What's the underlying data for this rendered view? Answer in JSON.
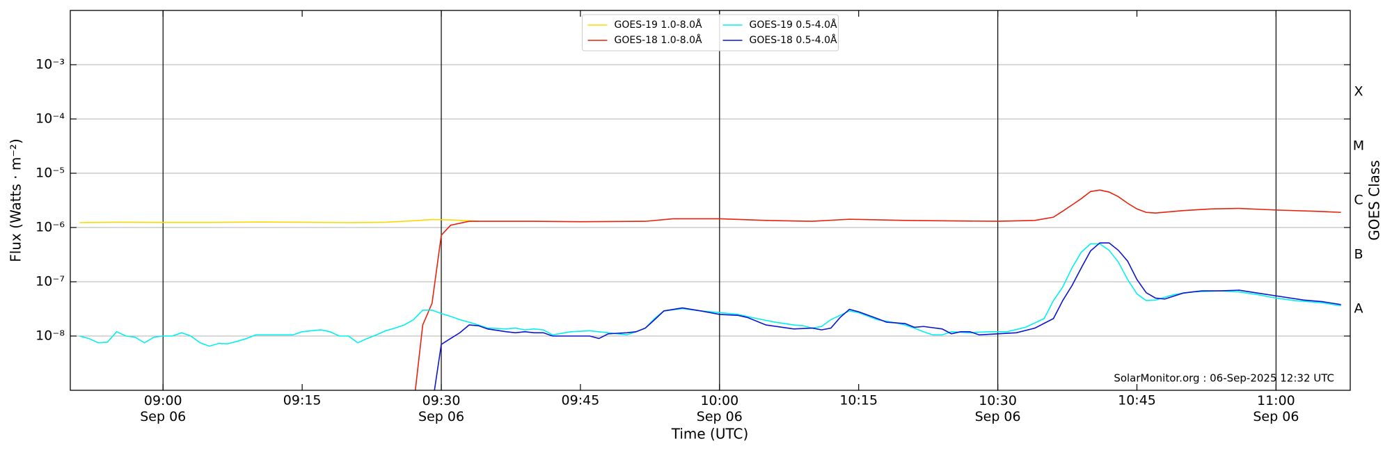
{
  "chart_data": {
    "type": "line",
    "xlabel": "Time (UTC)",
    "ylabel": "Flux (Watts · m⁻²)",
    "y2label": "GOES Class",
    "annotation": "SolarMonitor.org : 06-Sep-2025 12:32 UTC",
    "log_y": true,
    "grid": true,
    "legend": "upper center",
    "xlim": [
      "08:50",
      "11:08"
    ],
    "xticks": [
      {
        "value": "09:00",
        "label": "09:00\nSep 06"
      },
      "09:15",
      {
        "value": "09:30",
        "label": "09:30\nSep 06"
      },
      "09:45",
      {
        "value": "10:00",
        "label": "10:00\nSep 06"
      },
      "10:15",
      {
        "value": "10:30",
        "label": "10:30\nSep 06"
      },
      "10:45",
      {
        "value": "11:00",
        "label": "11:00\nSep 06"
      }
    ],
    "vlines": [
      "09:00",
      "09:30",
      "10:00",
      "10:30",
      "11:00"
    ],
    "ylim": [
      1e-09,
      0.01
    ],
    "yticks": [
      {
        "value": 1e-08,
        "label": "10⁻⁸"
      },
      {
        "value": 1e-07,
        "label": "10⁻⁷"
      },
      {
        "value": 1e-06,
        "label": "10⁻⁶"
      },
      {
        "value": 1e-05,
        "label": "10⁻⁵"
      },
      {
        "value": 0.0001,
        "label": "10⁻⁴"
      },
      {
        "value": 0.001,
        "label": "10⁻³"
      }
    ],
    "y2lim": [
      1e-09,
      0.01
    ],
    "y2ticks": [
      {
        "value": 3.16e-08,
        "label": "A"
      },
      {
        "value": 3.16e-07,
        "label": "B"
      },
      {
        "value": 3.16e-06,
        "label": "C"
      },
      {
        "value": 3.16e-05,
        "label": "M"
      },
      {
        "value": 0.000316,
        "label": "X"
      }
    ],
    "series": [
      {
        "name": "GOES-19 1.0-8.0Å",
        "color": "#ffd700",
        "x": [
          "08:51",
          "08:55",
          "09:00",
          "09:05",
          "09:10",
          "09:15",
          "09:20",
          "09:24",
          "09:27",
          "09:29",
          "09:31",
          "09:34"
        ],
        "values": [
          1.23e-06,
          1.25e-06,
          1.24e-06,
          1.24e-06,
          1.26e-06,
          1.25e-06,
          1.23e-06,
          1.25e-06,
          1.33e-06,
          1.4e-06,
          1.38e-06,
          1.3e-06
        ]
      },
      {
        "name": "GOES-18 1.0-8.0Å",
        "color": "#e8210a",
        "x": [
          "09:27",
          "09:28",
          "09:29",
          "09:30",
          "09:31",
          "09:33",
          "09:40",
          "09:45",
          "09:52",
          "09:55",
          "10:00",
          "10:05",
          "10:10",
          "10:14",
          "10:20",
          "10:30",
          "10:34",
          "10:36",
          "10:37",
          "10:38",
          "10:39",
          "10:40",
          "10:41",
          "10:42",
          "10:43",
          "10:44",
          "10:45",
          "10:46",
          "10:47",
          "10:50",
          "10:53",
          "10:56",
          "11:00",
          "11:04",
          "11:07"
        ],
        "values": [
          5e-10,
          1.6e-08,
          4e-08,
          7.2e-07,
          1.1e-06,
          1.3e-06,
          1.3e-06,
          1.28e-06,
          1.3e-06,
          1.45e-06,
          1.45e-06,
          1.35e-06,
          1.3e-06,
          1.42e-06,
          1.35e-06,
          1.3e-06,
          1.35e-06,
          1.55e-06,
          2e-06,
          2.6e-06,
          3.4e-06,
          4.6e-06,
          4.9e-06,
          4.5e-06,
          3.7e-06,
          2.8e-06,
          2.2e-06,
          1.9e-06,
          1.85e-06,
          2.05e-06,
          2.2e-06,
          2.25e-06,
          2.1e-06,
          2e-06,
          1.9e-06
        ]
      },
      {
        "name": "GOES-19 0.5-4.0Å",
        "color": "#00f0f0",
        "x": [
          "08:51",
          "08:52",
          "08:53",
          "08:54",
          "08:55",
          "08:56",
          "08:57",
          "08:58",
          "08:59",
          "09:00",
          "09:01",
          "09:02",
          "09:03",
          "09:04",
          "09:05",
          "09:06",
          "09:07",
          "09:08",
          "09:09",
          "09:10",
          "09:12",
          "09:14",
          "09:15",
          "09:17",
          "09:18",
          "09:19",
          "09:20",
          "09:21",
          "09:22",
          "09:23",
          "09:24",
          "09:25",
          "09:26",
          "09:27",
          "09:28",
          "09:29",
          "09:30",
          "09:31",
          "09:32",
          "09:33",
          "09:34",
          "09:35",
          "09:37",
          "09:38",
          "09:39",
          "09:40",
          "09:41",
          "09:42",
          "09:44",
          "09:46",
          "09:48",
          "09:49",
          "09:50",
          "09:51",
          "09:52",
          "09:53",
          "09:54",
          "09:56",
          "09:58",
          "10:00",
          "10:02",
          "10:04",
          "10:06",
          "10:08",
          "10:09",
          "10:10",
          "10:11",
          "10:12",
          "10:14",
          "10:15",
          "10:17",
          "10:19",
          "10:20",
          "10:21",
          "10:22",
          "10:23",
          "10:24",
          "10:25",
          "10:27",
          "10:29",
          "10:31",
          "10:33",
          "10:35",
          "10:36",
          "10:37",
          "10:38",
          "10:39",
          "10:40",
          "10:41",
          "10:42",
          "10:43",
          "10:44",
          "10:45",
          "10:46",
          "10:47",
          "10:49",
          "10:51",
          "10:54",
          "10:56",
          "10:58",
          "11:00",
          "11:02",
          "11:05",
          "11:07"
        ],
        "values": [
          1e-08,
          9e-09,
          7.5e-09,
          7.7e-09,
          1.2e-08,
          1e-08,
          9.5e-09,
          7.5e-09,
          9.5e-09,
          1e-08,
          1e-08,
          1.15e-08,
          1e-08,
          7.5e-09,
          6.5e-09,
          7.3e-09,
          7.2e-09,
          8e-09,
          9e-09,
          1.05e-08,
          1.05e-08,
          1.05e-08,
          1.2e-08,
          1.3e-08,
          1.2e-08,
          1e-08,
          1e-08,
          7.5e-09,
          9e-09,
          1.05e-08,
          1.25e-08,
          1.4e-08,
          1.6e-08,
          2e-08,
          3e-08,
          3e-08,
          2.6e-08,
          2.3e-08,
          2e-08,
          1.8e-08,
          1.6e-08,
          1.4e-08,
          1.35e-08,
          1.4e-08,
          1.3e-08,
          1.35e-08,
          1.3e-08,
          1.05e-08,
          1.2e-08,
          1.25e-08,
          1.15e-08,
          1.1e-08,
          1.05e-08,
          1.2e-08,
          1.4e-08,
          2.1e-08,
          2.9e-08,
          3.2e-08,
          2.9e-08,
          2.7e-08,
          2.5e-08,
          2.1e-08,
          1.8e-08,
          1.6e-08,
          1.55e-08,
          1.4e-08,
          1.5e-08,
          2e-08,
          2.9e-08,
          2.7e-08,
          2e-08,
          1.75e-08,
          1.6e-08,
          1.4e-08,
          1.2e-08,
          1.05e-08,
          1.05e-08,
          1.2e-08,
          1.15e-08,
          1.2e-08,
          1.2e-08,
          1.45e-08,
          2.1e-08,
          4.5e-08,
          8e-08,
          1.8e-07,
          3.5e-07,
          5e-07,
          5e-07,
          3.8e-07,
          2.3e-07,
          1.1e-07,
          6e-08,
          4.5e-08,
          4.6e-08,
          5.8e-08,
          6.5e-08,
          6.8e-08,
          6.5e-08,
          5.8e-08,
          5e-08,
          4.5e-08,
          4.1e-08,
          3.6e-08
        ]
      },
      {
        "name": "GOES-18 0.5-4.0Å",
        "color": "#0a14d2",
        "x": [
          "09:29",
          "09:30",
          "09:31",
          "09:32",
          "09:33",
          "09:34",
          "09:35",
          "09:37",
          "09:38",
          "09:39",
          "09:40",
          "09:41",
          "09:42",
          "09:44",
          "09:46",
          "09:47",
          "09:48",
          "09:50",
          "09:51",
          "09:52",
          "09:53",
          "09:54",
          "09:56",
          "09:58",
          "10:00",
          "10:02",
          "10:03",
          "10:05",
          "10:08",
          "10:10",
          "10:11",
          "10:12",
          "10:13",
          "10:14",
          "10:15",
          "10:17",
          "10:18",
          "10:20",
          "10:21",
          "10:22",
          "10:24",
          "10:25",
          "10:26",
          "10:27",
          "10:28",
          "10:30",
          "10:32",
          "10:34",
          "10:36",
          "10:37",
          "10:38",
          "10:39",
          "10:40",
          "10:41",
          "10:42",
          "10:43",
          "10:44",
          "10:45",
          "10:46",
          "10:47",
          "10:48",
          "10:50",
          "10:52",
          "10:54",
          "10:56",
          "10:58",
          "11:00",
          "11:03",
          "11:05",
          "11:07"
        ],
        "values": [
          5e-10,
          7e-09,
          9e-09,
          1.15e-08,
          1.6e-08,
          1.55e-08,
          1.35e-08,
          1.2e-08,
          1.15e-08,
          1.2e-08,
          1.15e-08,
          1.15e-08,
          1e-08,
          1e-08,
          1e-08,
          9e-09,
          1.1e-08,
          1.15e-08,
          1.2e-08,
          1.4e-08,
          2e-08,
          2.9e-08,
          3.3e-08,
          2.9e-08,
          2.5e-08,
          2.4e-08,
          2.2e-08,
          1.6e-08,
          1.35e-08,
          1.4e-08,
          1.3e-08,
          1.4e-08,
          2.2e-08,
          3.1e-08,
          2.8e-08,
          2.1e-08,
          1.8e-08,
          1.7e-08,
          1.45e-08,
          1.5e-08,
          1.35e-08,
          1.1e-08,
          1.2e-08,
          1.2e-08,
          1.05e-08,
          1.1e-08,
          1.15e-08,
          1.4e-08,
          2.1e-08,
          4.5e-08,
          8.5e-08,
          1.8e-07,
          3.7e-07,
          5.2e-07,
          5.2e-07,
          3.8e-07,
          2.4e-07,
          1.1e-07,
          6.3e-08,
          5e-08,
          4.8e-08,
          6.2e-08,
          6.8e-08,
          6.8e-08,
          7e-08,
          6.2e-08,
          5.5e-08,
          4.6e-08,
          4.3e-08,
          3.8e-08
        ]
      }
    ]
  }
}
